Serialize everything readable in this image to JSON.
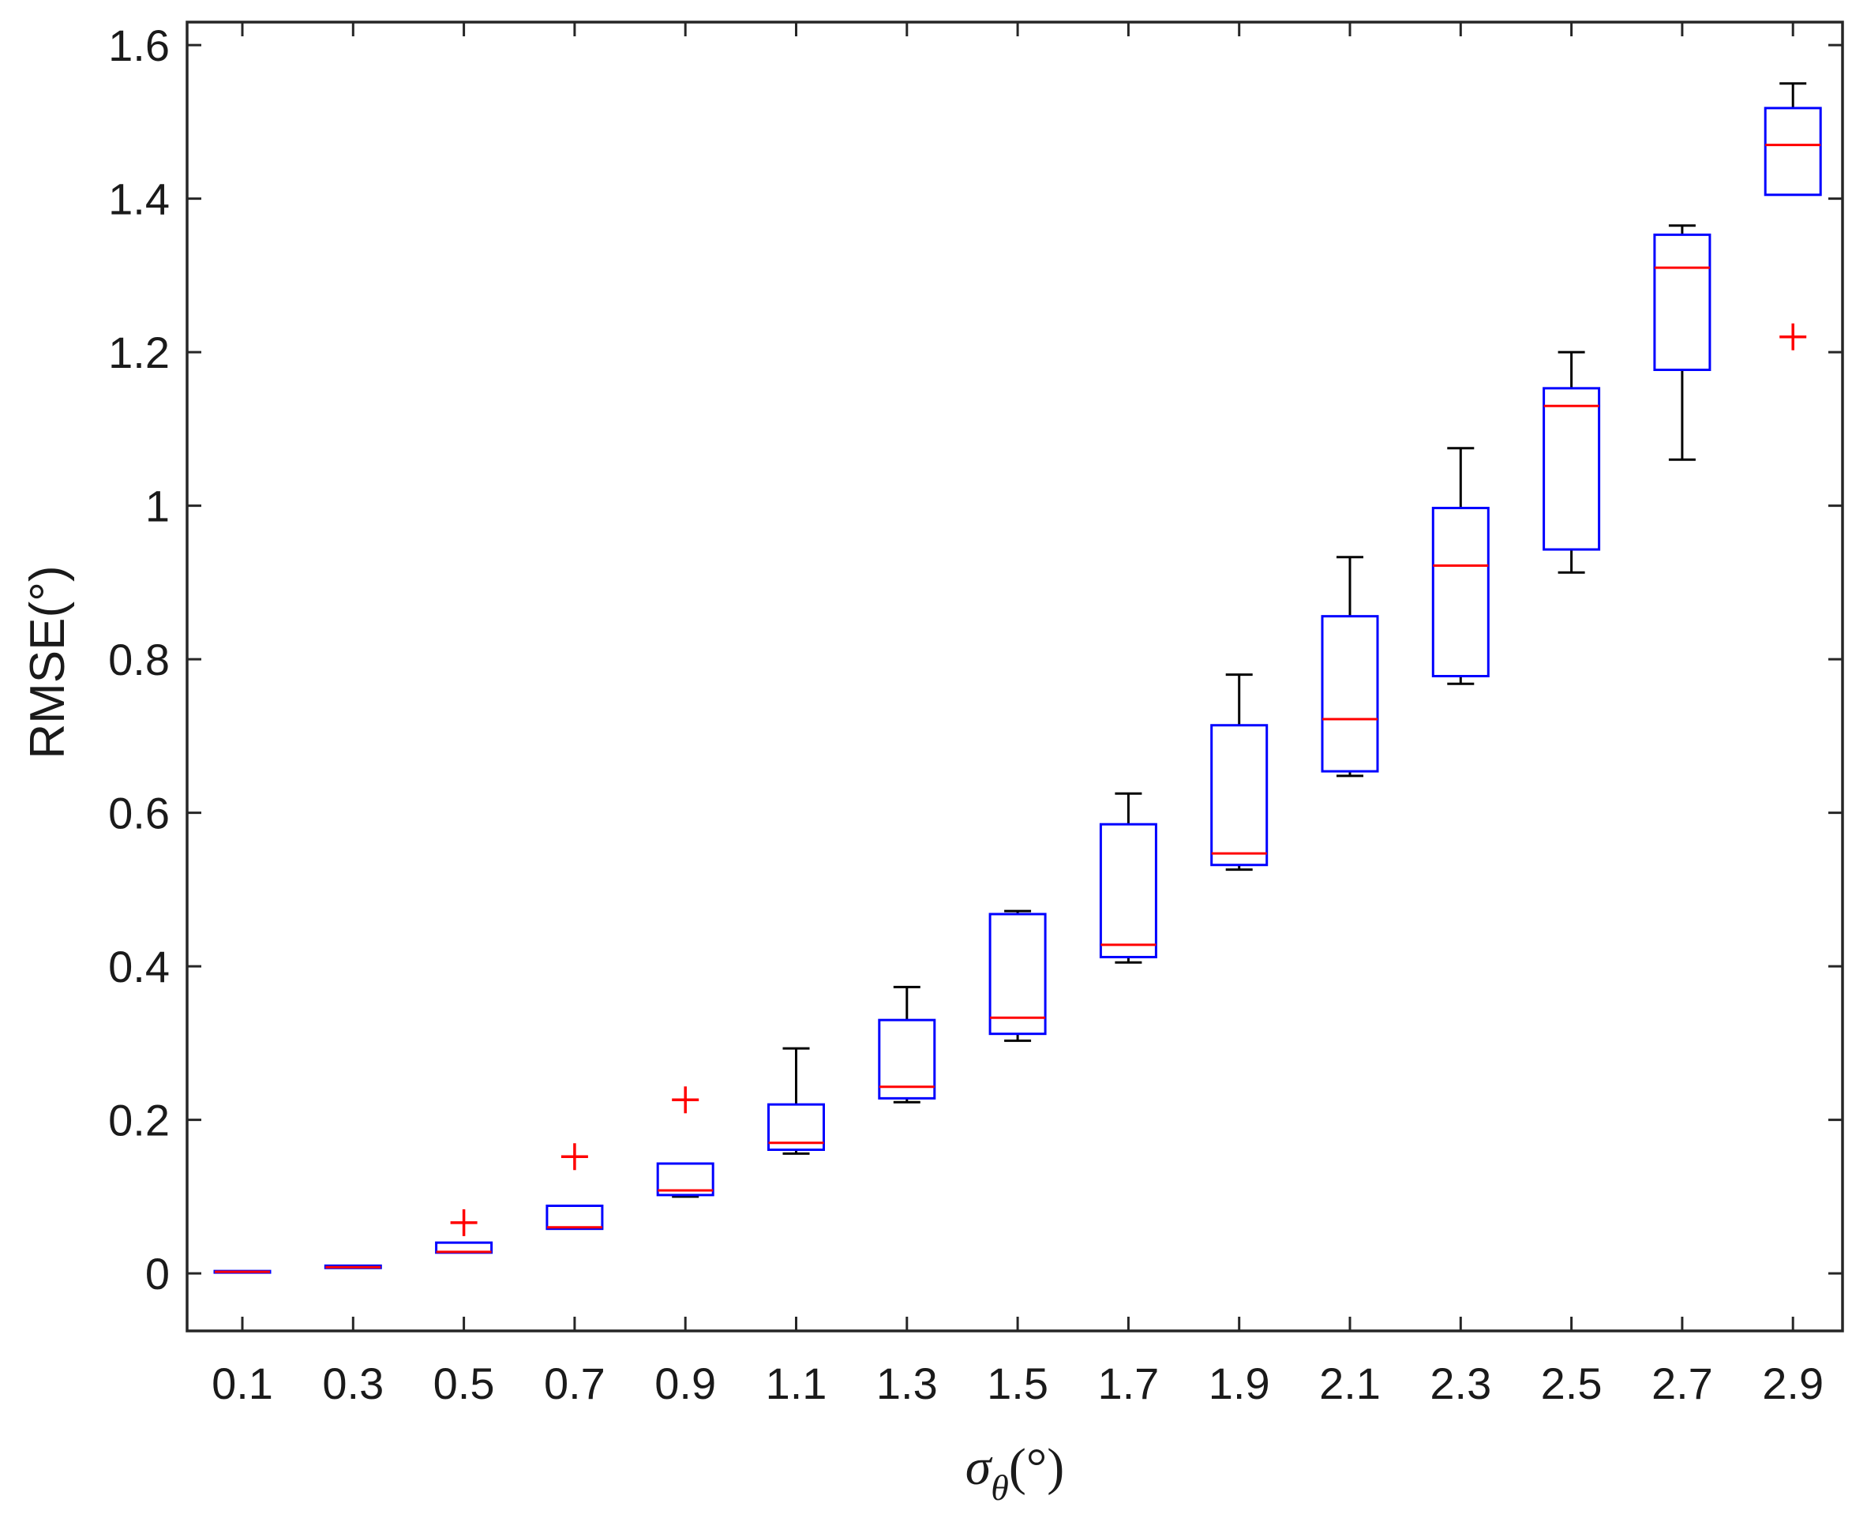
{
  "chart_data": {
    "type": "box",
    "title": "",
    "xlabel": {
      "symbol": "σ",
      "subscript": "θ",
      "unit": "(°)"
    },
    "ylabel": "RMSE(°)",
    "ylim": [
      -0.075,
      1.63
    ],
    "yticks": [
      0,
      0.2,
      0.4,
      0.6,
      0.8,
      1,
      1.2,
      1.4,
      1.6
    ],
    "ytick_labels": [
      "0",
      "0.2",
      "0.4",
      "0.6",
      "0.8",
      "1",
      "1.2",
      "1.4",
      "1.6"
    ],
    "grid": false,
    "colors": {
      "box": "#0000ff",
      "median": "#ff0000",
      "whisker": "#000000",
      "outlier": "#ff0000",
      "axis": "#262626"
    },
    "categories": [
      "0.1",
      "0.3",
      "0.5",
      "0.7",
      "0.9",
      "1.1",
      "1.3",
      "1.5",
      "1.7",
      "1.9",
      "2.1",
      "2.3",
      "2.5",
      "2.7",
      "2.9"
    ],
    "boxes": [
      {
        "category": "0.1",
        "whisker_low": 0.001,
        "q1": 0.001,
        "median": 0.002,
        "q3": 0.003,
        "whisker_high": 0.003,
        "outliers": []
      },
      {
        "category": "0.3",
        "whisker_low": 0.007,
        "q1": 0.007,
        "median": 0.008,
        "q3": 0.01,
        "whisker_high": 0.01,
        "outliers": []
      },
      {
        "category": "0.5",
        "whisker_low": 0.027,
        "q1": 0.027,
        "median": 0.028,
        "q3": 0.04,
        "whisker_high": 0.04,
        "outliers": [
          0.066
        ]
      },
      {
        "category": "0.7",
        "whisker_low": 0.057,
        "q1": 0.058,
        "median": 0.06,
        "q3": 0.088,
        "whisker_high": 0.088,
        "outliers": [
          0.152
        ]
      },
      {
        "category": "0.9",
        "whisker_low": 0.1,
        "q1": 0.102,
        "median": 0.108,
        "q3": 0.143,
        "whisker_high": 0.143,
        "outliers": [
          0.226
        ]
      },
      {
        "category": "1.1",
        "whisker_low": 0.156,
        "q1": 0.161,
        "median": 0.17,
        "q3": 0.22,
        "whisker_high": 0.293,
        "outliers": []
      },
      {
        "category": "1.3",
        "whisker_low": 0.223,
        "q1": 0.228,
        "median": 0.243,
        "q3": 0.33,
        "whisker_high": 0.373,
        "outliers": []
      },
      {
        "category": "1.5",
        "whisker_low": 0.303,
        "q1": 0.312,
        "median": 0.333,
        "q3": 0.468,
        "whisker_high": 0.472,
        "outliers": []
      },
      {
        "category": "1.7",
        "whisker_low": 0.405,
        "q1": 0.412,
        "median": 0.428,
        "q3": 0.585,
        "whisker_high": 0.625,
        "outliers": []
      },
      {
        "category": "1.9",
        "whisker_low": 0.526,
        "q1": 0.532,
        "median": 0.547,
        "q3": 0.714,
        "whisker_high": 0.78,
        "outliers": []
      },
      {
        "category": "2.1",
        "whisker_low": 0.648,
        "q1": 0.654,
        "median": 0.722,
        "q3": 0.856,
        "whisker_high": 0.933,
        "outliers": []
      },
      {
        "category": "2.3",
        "whisker_low": 0.768,
        "q1": 0.778,
        "median": 0.922,
        "q3": 0.997,
        "whisker_high": 1.075,
        "outliers": []
      },
      {
        "category": "2.5",
        "whisker_low": 0.913,
        "q1": 0.943,
        "median": 1.13,
        "q3": 1.153,
        "whisker_high": 1.2,
        "outliers": []
      },
      {
        "category": "2.7",
        "whisker_low": 1.06,
        "q1": 1.177,
        "median": 1.31,
        "q3": 1.353,
        "whisker_high": 1.365,
        "outliers": []
      },
      {
        "category": "2.9",
        "whisker_low": 1.405,
        "q1": 1.405,
        "median": 1.47,
        "q3": 1.518,
        "whisker_high": 1.55,
        "outliers": [
          1.22
        ]
      }
    ]
  }
}
